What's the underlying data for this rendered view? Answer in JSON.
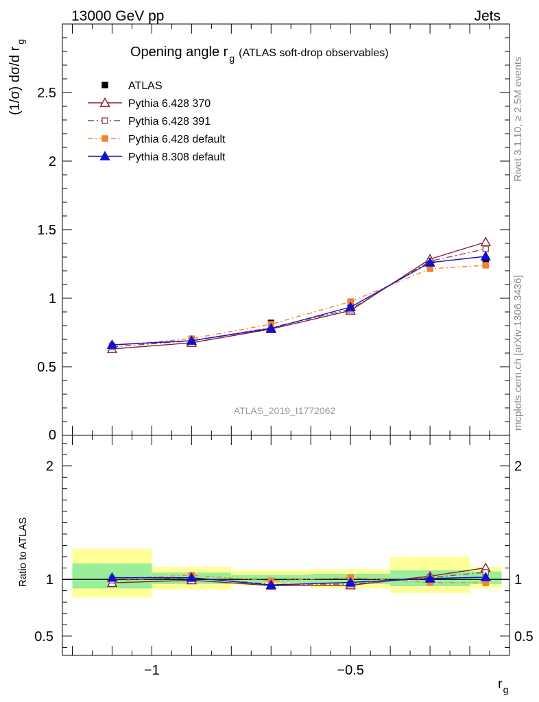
{
  "header": {
    "energy": "13000 GeV pp",
    "process": "Jets"
  },
  "side": {
    "rivet": "Rivet 3.1.10, ≥ 2.5M events",
    "mcplots": "mcplots.cern.ch [arXiv:1306.3436]"
  },
  "chart_data": {
    "type": "line",
    "title": "Opening angle r",
    "title_sub": "g",
    "title_suffix": "(ATLAS soft-drop observables)",
    "analysis": "ATLAS_2019_I1772062",
    "xlabel": "r",
    "xlabel_sub": "g",
    "ylabel": "(1/σ) dσ/d r",
    "ylabel_sub": "g",
    "ratio_ylabel": "Ratio to ATLAS",
    "xlim": [
      -1.225,
      -0.1
    ],
    "ylim": [
      0,
      3.0
    ],
    "ratio_ylim": [
      0.33,
      2.27
    ],
    "x_ticks": [
      -1,
      -0.5
    ],
    "x_tick_labels": [
      "−1",
      "−0.5"
    ],
    "y_ticks": [
      0.5,
      1,
      1.5,
      2,
      2.5
    ],
    "y_tick_labels": [
      "0.5",
      "1",
      "1.5",
      "2",
      "2.5"
    ],
    "y_zero_label": "0",
    "ratio_ticks": [
      0.5,
      1,
      2
    ],
    "ratio_tick_labels": [
      "0.5",
      "1",
      "2"
    ],
    "bins": [
      [
        -1.2,
        -1.0
      ],
      [
        -1.0,
        -0.8
      ],
      [
        -0.8,
        -0.6
      ],
      [
        -0.6,
        -0.4
      ],
      [
        -0.4,
        -0.2
      ],
      [
        -0.2,
        -0.12
      ]
    ],
    "x": [
      -1.1,
      -0.9,
      -0.7,
      -0.5,
      -0.3,
      -0.16
    ],
    "data": {
      "name": "ATLAS",
      "values": [
        0.65,
        0.68,
        0.82,
        0.96,
        1.25,
        1.28
      ]
    },
    "band_yellow": [
      [
        0.84,
        1.27
      ],
      [
        0.91,
        1.11
      ],
      [
        0.95,
        1.08
      ],
      [
        0.92,
        1.09
      ],
      [
        0.88,
        1.2
      ],
      [
        0.92,
        1.11
      ]
    ],
    "band_green": [
      [
        0.92,
        1.14
      ],
      [
        0.96,
        1.06
      ],
      [
        0.97,
        1.04
      ],
      [
        0.96,
        1.05
      ],
      [
        0.94,
        1.08
      ],
      [
        0.96,
        1.07
      ]
    ],
    "series": [
      {
        "name": "Pythia 6.428 370",
        "color": "#8b1a2b",
        "marker": "triangle-open",
        "dash": "",
        "values": [
          0.63,
          0.675,
          0.775,
          0.91,
          1.285,
          1.41
        ]
      },
      {
        "name": "Pythia 6.428 391",
        "color": "#8b4a55",
        "marker": "square-open",
        "dash": "9,4,2,4",
        "values": [
          0.645,
          0.69,
          0.785,
          0.92,
          1.27,
          1.36
        ]
      },
      {
        "name": "Pythia 6.428 default",
        "color": "#f57f30",
        "marker": "square-filled",
        "dash": "7,4,2,4",
        "values": [
          0.655,
          0.705,
          0.81,
          0.975,
          1.215,
          1.24
        ]
      },
      {
        "name": "Pythia 8.308 default",
        "color": "#1010cc",
        "marker": "triangle-filled",
        "dash": "",
        "values": [
          0.66,
          0.69,
          0.78,
          0.935,
          1.26,
          1.305
        ]
      }
    ]
  }
}
